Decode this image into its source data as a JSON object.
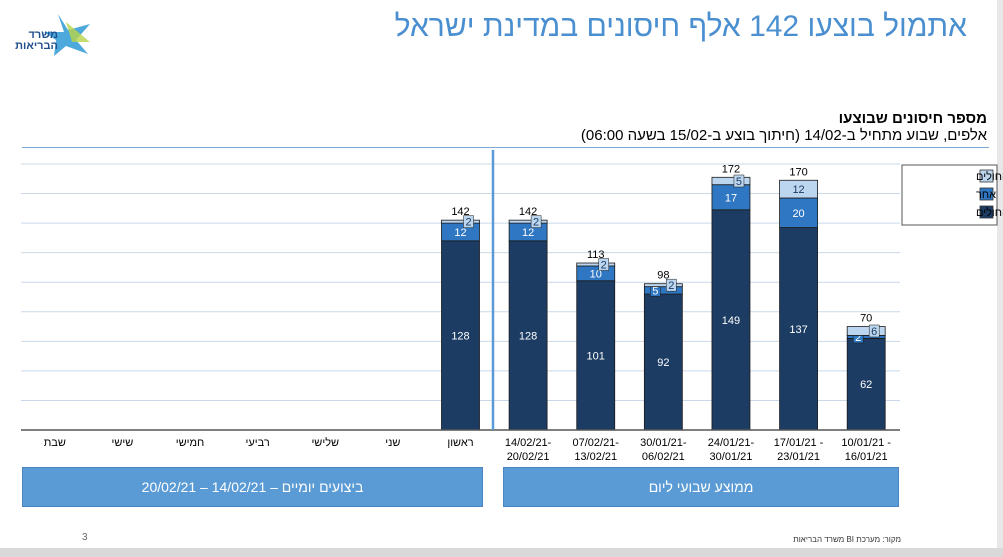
{
  "header": {
    "title": "אתמול בוצעו 142 אלף חיסונים במדינת ישראל",
    "logo_text": "משרד הבריאות"
  },
  "chart_data": {
    "type": "bar",
    "stacked": true,
    "title": "מספר חיסונים שבוצעו",
    "subtitle": "אלפים, שבוע מתחיל ב-14/02 (חיתוך בוצע ב-15/02 בשעה 06:00)",
    "categories": [
      "10/01/21 - 16/01/21",
      "17/01/21 - 23/01/21",
      "24/01/21- 30/01/21",
      "30/01/21- 06/02/21",
      "07/02/21- 13/02/21",
      "14/02/21- 20/02/21",
      "ראשון",
      "שני",
      "שלישי",
      "רביעי",
      "חמישי",
      "שישי",
      "שבת"
    ],
    "series": [
      {
        "name": "קופות החולים",
        "color": "#1d3c63",
        "values": [
          62,
          137,
          149,
          92,
          101,
          128,
          128,
          null,
          null,
          null,
          null,
          null,
          null
        ]
      },
      {
        "name": "אחר",
        "color": "#2f77c2",
        "values": [
          2,
          20,
          17,
          5,
          10,
          12,
          12,
          null,
          null,
          null,
          null,
          null,
          null
        ]
      },
      {
        "name": "בתי החולים",
        "color": "#bdd6ef",
        "values": [
          6,
          12,
          5,
          2,
          2,
          2,
          2,
          null,
          null,
          null,
          null,
          null,
          null
        ]
      }
    ],
    "totals": [
      70,
      170,
      172,
      98,
      113,
      142,
      142,
      null,
      null,
      null,
      null,
      null,
      null
    ],
    "ylim": [
      0,
      180
    ],
    "grid": true,
    "legend": "top-right",
    "direction": "right-to-left"
  },
  "banners": {
    "weekly": "ממוצע שבועי ליום",
    "daily": "ביצועים יומיים – 14/02/21 – 20/02/21"
  },
  "footer": {
    "page": "3",
    "source": "מקור: מערכת BI משרד הבריאות"
  }
}
